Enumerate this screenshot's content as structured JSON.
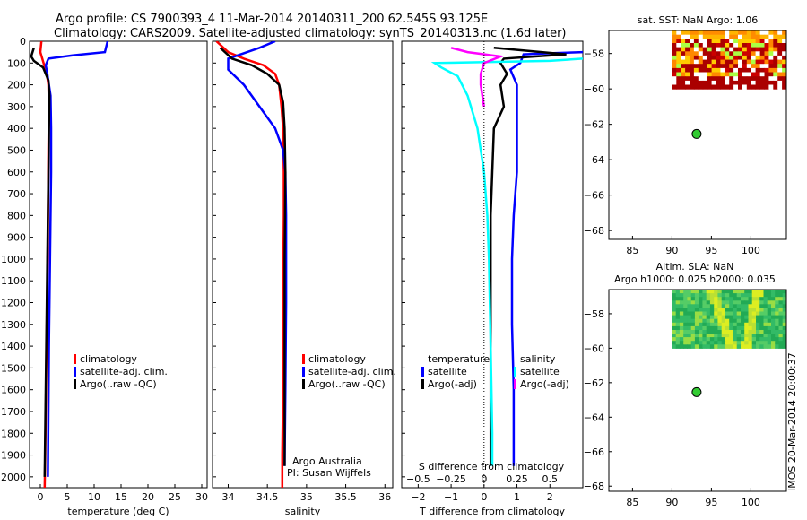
{
  "header": {
    "line1": "Argo profile: CS 7900393_4 11-Mar-2014 20140311_200 62.545S 93.125E",
    "line2": "Climatology: CARS2009. Satellite-adjusted climatology: synTS_20140313.nc (1.6d later)"
  },
  "side_note": "IMOS 20-Mar-2014 20:00:37",
  "colors": {
    "climatology": "#ff0000",
    "satellite": "#0000ff",
    "argo": "#000000",
    "salinity_satellite": "#00ffff",
    "salinity_argo": "#ff00ff",
    "float_marker": "#33cc33"
  },
  "chart_data": [
    {
      "type": "line",
      "id": "temperature",
      "xlabel": "temperature (deg C)",
      "ylabel": "",
      "xlim": [
        -2,
        31
      ],
      "ylim": [
        2050,
        0
      ],
      "xticks": [
        0,
        5,
        10,
        15,
        20,
        25,
        30
      ],
      "yticks": [
        0,
        100,
        200,
        300,
        400,
        500,
        600,
        700,
        800,
        900,
        1000,
        1100,
        1200,
        1300,
        1400,
        1500,
        1600,
        1700,
        1800,
        1900,
        2000
      ],
      "legend": [
        "climatology",
        "satellite-adj. clim.",
        "Argo(..raw -QC)"
      ],
      "series": [
        {
          "name": "climatology",
          "color": "#ff0000",
          "x": [
            0.2,
            0.0,
            0.6,
            1.2,
            1.5,
            1.6,
            1.55,
            1.5,
            1.45,
            1.4,
            1.3,
            1.2,
            1.1,
            1.0,
            0.9,
            0.8
          ],
          "y": [
            0,
            50,
            100,
            150,
            200,
            300,
            400,
            500,
            700,
            900,
            1100,
            1300,
            1500,
            1700,
            1900,
            2050
          ]
        },
        {
          "name": "satellite-adj. clim.",
          "color": "#0000ff",
          "x": [
            12.5,
            12.0,
            6.0,
            1.5,
            1.0,
            1.3,
            1.9,
            2.0,
            2.0,
            1.9,
            1.8,
            1.7,
            1.6,
            1.5,
            1.4
          ],
          "y": [
            0,
            50,
            65,
            80,
            110,
            150,
            250,
            400,
            600,
            800,
            1000,
            1200,
            1400,
            1700,
            2000
          ]
        },
        {
          "name": "Argo(..raw -QC)",
          "color": "#000000",
          "x": [
            -1.2,
            -1.7,
            -1.2,
            0.5,
            1.5,
            1.7,
            1.6,
            1.5,
            1.4,
            1.3,
            1.2,
            1.1,
            1.0,
            0.9,
            0.8
          ],
          "y": [
            30,
            70,
            90,
            120,
            180,
            250,
            400,
            600,
            800,
            1000,
            1200,
            1400,
            1600,
            1800,
            2000
          ]
        }
      ]
    },
    {
      "type": "line",
      "id": "salinity",
      "xlabel": "salinity",
      "ylabel": "",
      "xlim": [
        33.8,
        36.1
      ],
      "ylim": [
        2050,
        0
      ],
      "xticks": [
        34,
        34.5,
        35,
        35.5,
        36
      ],
      "legend": [
        "climatology",
        "satellite-adj. clim.",
        "Argo(..raw -QC)"
      ],
      "annotation": [
        "Argo Australia",
        "PI: Susan Wijffels"
      ],
      "series": [
        {
          "name": "climatology",
          "color": "#ff0000",
          "x": [
            33.85,
            34.0,
            34.2,
            34.45,
            34.6,
            34.65,
            34.68,
            34.7,
            34.71,
            34.71,
            34.7,
            34.7,
            34.69,
            34.69
          ],
          "y": [
            0,
            50,
            80,
            110,
            150,
            200,
            300,
            400,
            600,
            800,
            1200,
            1600,
            1900,
            2050
          ]
        },
        {
          "name": "satellite-adj. clim.",
          "color": "#0000ff",
          "x": [
            34.6,
            34.4,
            34.0,
            34.0,
            34.2,
            34.4,
            34.6,
            34.7,
            34.73,
            34.74,
            34.74,
            34.73,
            34.72
          ],
          "y": [
            0,
            30,
            80,
            130,
            200,
            300,
            400,
            500,
            600,
            800,
            1200,
            1600,
            1950
          ]
        },
        {
          "name": "Argo(..raw -QC)",
          "color": "#000000",
          "x": [
            33.9,
            34.05,
            34.3,
            34.5,
            34.65,
            34.7,
            34.72,
            34.73,
            34.72,
            34.72,
            34.72
          ],
          "y": [
            30,
            80,
            110,
            150,
            200,
            280,
            400,
            600,
            1000,
            1400,
            1950
          ]
        }
      ]
    },
    {
      "type": "line",
      "id": "difference",
      "xlabel": "T difference from climatology",
      "xlabel_top": "S difference from climatology",
      "ylabel": "",
      "xlim": [
        -2.5,
        3.0
      ],
      "ylim": [
        2050,
        0
      ],
      "xticks": [
        -2,
        -1,
        0,
        1,
        2
      ],
      "xticks_s": [
        -0.5,
        -0.25,
        0,
        0.25,
        0.5
      ],
      "xtick_labels_s": [
        "−0.5",
        "−0.25",
        "0",
        "0.25",
        "0.5"
      ],
      "legend_temperature": [
        "temperature",
        "satellite",
        "Argo(-adj)"
      ],
      "legend_salinity": [
        "salinity",
        "satellite",
        "Argo(-adj)"
      ],
      "series": [
        {
          "name": "temperature satellite",
          "color": "#0000ff",
          "x": [
            3.0,
            2.0,
            1.2,
            1.1,
            0.8,
            1.0,
            1.0,
            1.0,
            0.9,
            0.85,
            0.85,
            0.9,
            0.9
          ],
          "y": [
            50,
            55,
            60,
            100,
            130,
            200,
            400,
            600,
            800,
            1000,
            1300,
            1600,
            1950
          ]
        },
        {
          "name": "temperature Argo(-adj)",
          "color": "#000000",
          "x": [
            0.3,
            2.5,
            0.6,
            0.5,
            0.7,
            0.5,
            0.6,
            0.3,
            0.25,
            0.2,
            0.2,
            0.2,
            0.2
          ],
          "y": [
            30,
            60,
            80,
            100,
            150,
            200,
            300,
            400,
            600,
            800,
            1200,
            1600,
            1950
          ]
        },
        {
          "name": "salinity satellite",
          "color": "#00ffff",
          "x": [
            3.0,
            2.0,
            -1.5,
            -1.3,
            -0.8,
            -0.5,
            -0.2,
            0.0,
            0.1,
            0.15,
            0.2,
            0.25,
            0.25
          ],
          "y": [
            80,
            90,
            100,
            120,
            160,
            250,
            400,
            600,
            800,
            1000,
            1400,
            1800,
            1950
          ]
        },
        {
          "name": "salinity Argo(-adj)",
          "color": "#ff00ff",
          "x": [
            -1.0,
            -0.5,
            0.5,
            0.0,
            -0.1,
            -0.1,
            0.0
          ],
          "y": [
            30,
            50,
            70,
            100,
            150,
            200,
            300
          ]
        }
      ]
    },
    {
      "type": "heatmap",
      "id": "sst-map",
      "title": "sat. SST: NaN Argo: 1.06",
      "xlim": [
        82,
        104.5
      ],
      "ylim": [
        -68.5,
        -56.7
      ],
      "xticks": [
        85,
        90,
        95,
        100
      ],
      "yticks": [
        -58,
        -60,
        -62,
        -64,
        -66,
        -68
      ],
      "data_extent_x": [
        90,
        104.5
      ],
      "data_extent_y": [
        -60,
        -56.7
      ],
      "marker": {
        "x": 93.125,
        "y": -62.545
      }
    },
    {
      "type": "heatmap",
      "id": "sla-map",
      "title": "Altim. SLA: NaN",
      "subtitle": "Argo h1000: 0.025 h2000: 0.035",
      "xlim": [
        82,
        104.5
      ],
      "ylim": [
        -68.3,
        -56.6
      ],
      "xticks": [
        85,
        90,
        95,
        100
      ],
      "yticks": [
        -58,
        -60,
        -62,
        -64,
        -66,
        -68
      ],
      "data_extent_x": [
        90,
        104.5
      ],
      "data_extent_y": [
        -60,
        -56.6
      ],
      "marker": {
        "x": 93.125,
        "y": -62.545
      }
    }
  ]
}
